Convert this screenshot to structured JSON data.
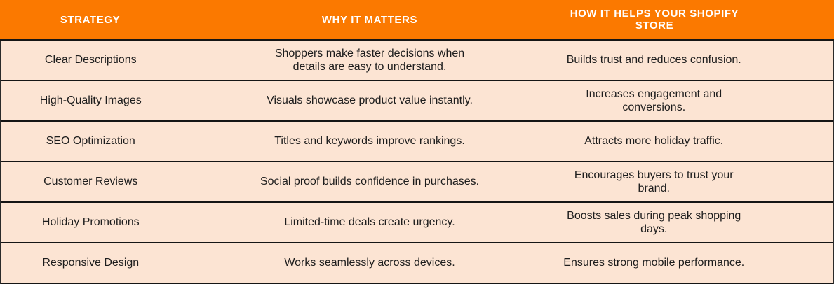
{
  "table": {
    "accent_color": "#FB7900",
    "row_bg_color": "#FCE4D3",
    "divider_color": "#151515",
    "header_text_color": "#FFFFFF",
    "body_text_color": "#1D1D1D",
    "columns": {
      "strategy": "STRATEGY",
      "why": "WHY IT MATTERS",
      "how": "HOW IT HELPS YOUR SHOPIFY STORE"
    },
    "rows": [
      {
        "strategy": "Clear Descriptions",
        "why": "Shoppers make faster decisions when\ndetails are easy to understand.",
        "how": "Builds trust and reduces confusion."
      },
      {
        "strategy": "High-Quality Images",
        "why": "Visuals showcase product value instantly.",
        "how": "Increases engagement and conversions."
      },
      {
        "strategy": "SEO Optimization",
        "why": "Titles and keywords improve rankings.",
        "how": "Attracts more holiday traffic."
      },
      {
        "strategy": "Customer Reviews",
        "why": "Social proof builds confidence in purchases.",
        "how": "Encourages buyers to trust your brand."
      },
      {
        "strategy": "Holiday Promotions",
        "why": "Limited-time deals create urgency.",
        "how": "Boosts sales during peak shopping days."
      },
      {
        "strategy": "Responsive Design",
        "why": "Works seamlessly across devices.",
        "how": "Ensures strong mobile performance."
      }
    ]
  }
}
